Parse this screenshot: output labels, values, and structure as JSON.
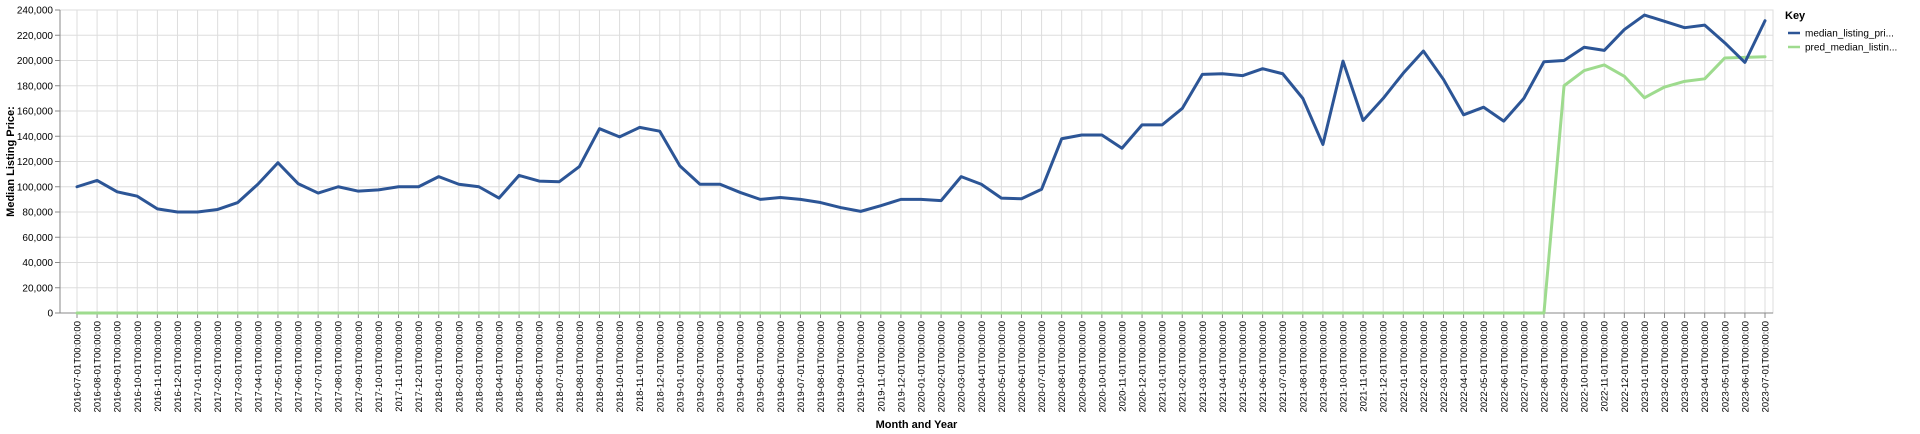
{
  "chart_data": {
    "type": "line",
    "xlabel": "Month and Year",
    "ylabel": "Median Listing Price:",
    "ylim": [
      0,
      240000
    ],
    "yticks": [
      0,
      20000,
      40000,
      60000,
      80000,
      100000,
      120000,
      140000,
      160000,
      180000,
      200000,
      220000,
      240000
    ],
    "grid": true,
    "legend": {
      "title": "Key",
      "position": "right"
    },
    "categories": [
      "2016-07-01T00:00:00",
      "2016-08-01T00:00:00",
      "2016-09-01T00:00:00",
      "2016-10-01T00:00:00",
      "2016-11-01T00:00:00",
      "2016-12-01T00:00:00",
      "2017-01-01T00:00:00",
      "2017-02-01T00:00:00",
      "2017-03-01T00:00:00",
      "2017-04-01T00:00:00",
      "2017-05-01T00:00:00",
      "2017-06-01T00:00:00",
      "2017-07-01T00:00:00",
      "2017-08-01T00:00:00",
      "2017-09-01T00:00:00",
      "2017-10-01T00:00:00",
      "2017-11-01T00:00:00",
      "2017-12-01T00:00:00",
      "2018-01-01T00:00:00",
      "2018-02-01T00:00:00",
      "2018-03-01T00:00:00",
      "2018-04-01T00:00:00",
      "2018-05-01T00:00:00",
      "2018-06-01T00:00:00",
      "2018-07-01T00:00:00",
      "2018-08-01T00:00:00",
      "2018-09-01T00:00:00",
      "2018-10-01T00:00:00",
      "2018-11-01T00:00:00",
      "2018-12-01T00:00:00",
      "2019-01-01T00:00:00",
      "2019-02-01T00:00:00",
      "2019-03-01T00:00:00",
      "2019-04-01T00:00:00",
      "2019-05-01T00:00:00",
      "2019-06-01T00:00:00",
      "2019-07-01T00:00:00",
      "2019-08-01T00:00:00",
      "2019-09-01T00:00:00",
      "2019-10-01T00:00:00",
      "2019-11-01T00:00:00",
      "2019-12-01T00:00:00",
      "2020-01-01T00:00:00",
      "2020-02-01T00:00:00",
      "2020-03-01T00:00:00",
      "2020-04-01T00:00:00",
      "2020-05-01T00:00:00",
      "2020-06-01T00:00:00",
      "2020-07-01T00:00:00",
      "2020-08-01T00:00:00",
      "2020-09-01T00:00:00",
      "2020-10-01T00:00:00",
      "2020-11-01T00:00:00",
      "2020-12-01T00:00:00",
      "2021-01-01T00:00:00",
      "2021-02-01T00:00:00",
      "2021-03-01T00:00:00",
      "2021-04-01T00:00:00",
      "2021-05-01T00:00:00",
      "2021-06-01T00:00:00",
      "2021-07-01T00:00:00",
      "2021-08-01T00:00:00",
      "2021-09-01T00:00:00",
      "2021-10-01T00:00:00",
      "2021-11-01T00:00:00",
      "2021-12-01T00:00:00",
      "2022-01-01T00:00:00",
      "2022-02-01T00:00:00",
      "2022-03-01T00:00:00",
      "2022-04-01T00:00:00",
      "2022-05-01T00:00:00",
      "2022-06-01T00:00:00",
      "2022-07-01T00:00:00",
      "2022-08-01T00:00:00",
      "2022-09-01T00:00:00",
      "2022-10-01T00:00:00",
      "2022-11-01T00:00:00",
      "2022-12-01T00:00:00",
      "2023-01-01T00:00:00",
      "2023-02-01T00:00:00",
      "2023-03-01T00:00:00",
      "2023-04-01T00:00:00",
      "2023-05-01T00:00:00",
      "2023-06-01T00:00:00",
      "2023-07-01T00:00:00"
    ],
    "series": [
      {
        "name": "median_listing_pri...",
        "color": "#2c5596",
        "values": [
          100000,
          105000,
          96000,
          92500,
          82500,
          80000,
          80000,
          82000,
          87500,
          102000,
          119000,
          102500,
          95000,
          100000,
          96500,
          97500,
          100000,
          100000,
          108000,
          102000,
          100000,
          91000,
          109000,
          104500,
          104000,
          116000,
          146000,
          139500,
          147000,
          144000,
          116500,
          102000,
          102000,
          95500,
          90000,
          91500,
          90000,
          87500,
          83500,
          80500,
          85000,
          90000,
          90000,
          89000,
          108000,
          102000,
          91000,
          90500,
          98000,
          138000,
          141000,
          141000,
          130500,
          149000,
          149000,
          162000,
          189000,
          189500,
          188000,
          193500,
          189500,
          170000,
          133500,
          199500,
          152500,
          170000,
          190000,
          207500,
          185000,
          157000,
          163000,
          152000,
          170000,
          199000,
          200000,
          210500,
          208000,
          224500,
          236000,
          231000,
          226000,
          228000,
          214000,
          198500,
          231500
        ]
      },
      {
        "name": "pred_median_listin...",
        "color": "#9edb8e",
        "values": [
          0,
          0,
          0,
          0,
          0,
          0,
          0,
          0,
          0,
          0,
          0,
          0,
          0,
          0,
          0,
          0,
          0,
          0,
          0,
          0,
          0,
          0,
          0,
          0,
          0,
          0,
          0,
          0,
          0,
          0,
          0,
          0,
          0,
          0,
          0,
          0,
          0,
          0,
          0,
          0,
          0,
          0,
          0,
          0,
          0,
          0,
          0,
          0,
          0,
          0,
          0,
          0,
          0,
          0,
          0,
          0,
          0,
          0,
          0,
          0,
          0,
          0,
          0,
          0,
          0,
          0,
          0,
          0,
          0,
          0,
          0,
          0,
          0,
          0,
          180000,
          192000,
          196500,
          187500,
          170500,
          179000,
          183500,
          185500,
          202000,
          202500,
          203000
        ]
      }
    ]
  }
}
